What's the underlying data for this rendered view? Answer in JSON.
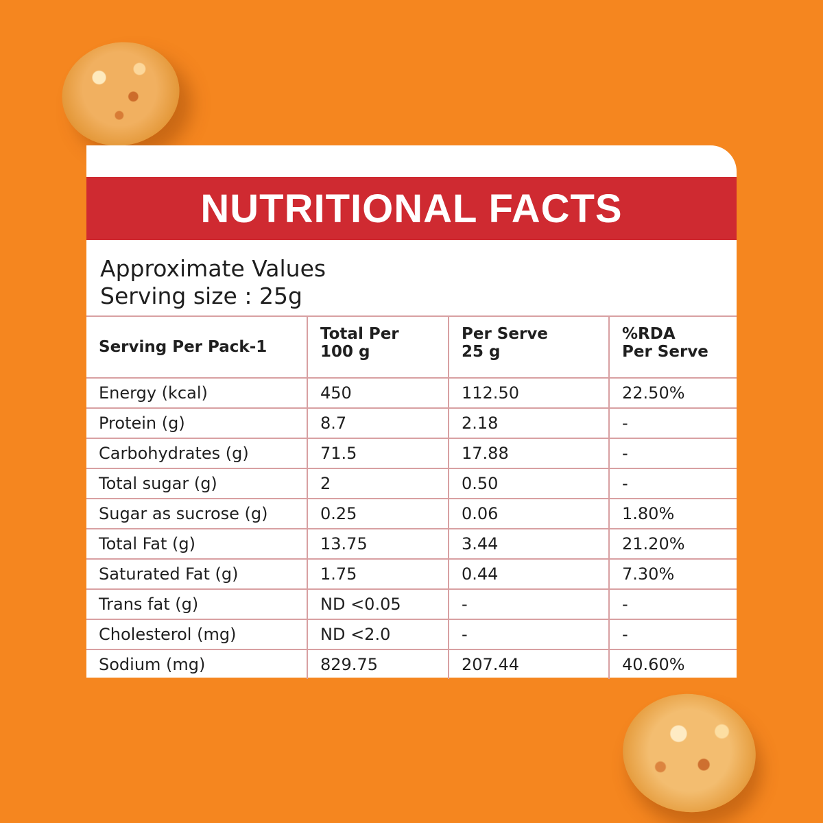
{
  "title": "NUTRITIONAL FACTS",
  "subtitle": {
    "line1": "Approximate Values",
    "line2": "Serving size : 25g"
  },
  "table": {
    "headers": [
      "Serving Per Pack-1",
      "Total Per 100 g",
      "Per Serve 25 g",
      "%RDA Per Serve"
    ],
    "header_lines": [
      [
        "Serving Per Pack-1"
      ],
      [
        "Total Per",
        "100 g"
      ],
      [
        "Per Serve",
        "25 g"
      ],
      [
        "%RDA",
        "Per Serve"
      ]
    ],
    "rows": [
      [
        "Energy (kcal)",
        "450",
        "112.50",
        "22.50%"
      ],
      [
        "Protein (g)",
        "8.7",
        "2.18",
        "-"
      ],
      [
        "Carbohydrates (g)",
        "71.5",
        "17.88",
        "-"
      ],
      [
        "Total sugar (g)",
        "2",
        "0.50",
        "-"
      ],
      [
        "Sugar as sucrose (g)",
        "0.25",
        "0.06",
        "1.80%"
      ],
      [
        "Total Fat (g)",
        "13.75",
        "3.44",
        "21.20%"
      ],
      [
        "Saturated Fat (g)",
        "1.75",
        "0.44",
        "7.30%"
      ],
      [
        "Trans fat (g)",
        "ND <0.05",
        "-",
        "-"
      ],
      [
        "Cholesterol (mg)",
        "ND <2.0",
        "-",
        "-"
      ],
      [
        "Sodium (mg)",
        "829.75",
        "207.44",
        "40.60%"
      ]
    ]
  },
  "colors": {
    "background": "#f5861f",
    "banner": "#cf2a31",
    "card": "#ffffff",
    "grid": "#d8a0a2"
  }
}
